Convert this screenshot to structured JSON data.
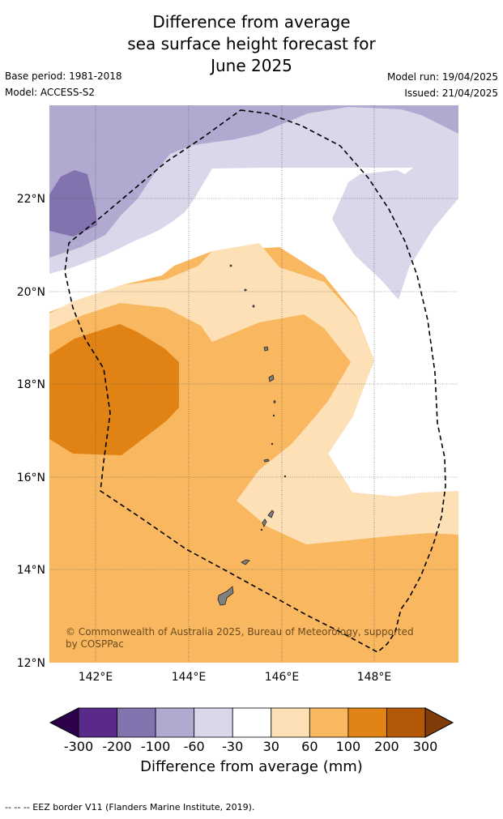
{
  "title": {
    "line1": "Difference from average",
    "line2": "sea surface height forecast for",
    "line3": "June 2025"
  },
  "meta": {
    "base_period": "Base period: 1981-2018",
    "model": "Model: ACCESS-S2",
    "model_run": "Model run: 19/04/2025",
    "issued": "Issued: 21/04/2025"
  },
  "map": {
    "lon_range": [
      141,
      149.8
    ],
    "lat_range": [
      12,
      24
    ],
    "lon_ticks": [
      "142°E",
      "144°E",
      "146°E",
      "148°E"
    ],
    "lat_ticks": [
      "22°N",
      "20°N",
      "18°N",
      "16°N",
      "14°N",
      "12°N"
    ],
    "grid": true,
    "credit_line1": "© Commonwealth of Australia 2025, Bureau of Meteorology, supported",
    "credit_line2": "by COSPPac",
    "eez_style": "dashed",
    "colors": {
      "lt_-200": "#5a2a8a",
      "-200_-100": "#8272ae",
      "-100_-60": "#b0aad0",
      "-60_-30": "#d8d8ea",
      "-30_30": "#ffffff",
      "30_60": "#fde0b6",
      "60_100": "#f9b860",
      "100_200": "#e08214",
      "200_300": "#b35806",
      "gt_300": "#7f3b08",
      "land": "#808080"
    }
  },
  "colorbar": {
    "ticks": [
      "-300",
      "-200",
      "-100",
      "-60",
      "-30",
      "30",
      "60",
      "100",
      "200",
      "300"
    ],
    "colors": [
      "#5a2a8a",
      "#8272ae",
      "#b0aad0",
      "#d8d8ea",
      "#ffffff",
      "#fde0b6",
      "#f9b860",
      "#e08214",
      "#b35806"
    ],
    "extend_low": "#2d004b",
    "extend_high": "#7f3b08",
    "label": "Difference from average (mm)"
  },
  "footer": "--  --  -- EEZ border V11 (Flanders Marine Institute, 2019)."
}
